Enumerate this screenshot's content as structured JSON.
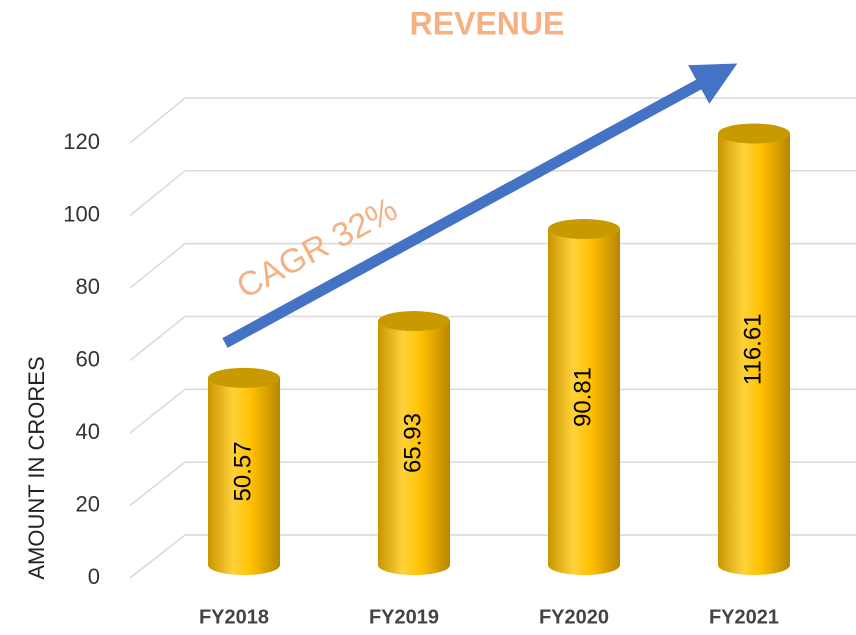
{
  "chart_data": {
    "type": "bar",
    "title": "REVENUE",
    "y_label": "AMOUNT IN CRORES",
    "annotation": "CAGR 32%",
    "categories": [
      "FY2018",
      "FY2019",
      "FY2020",
      "FY2021"
    ],
    "values": [
      50.57,
      65.93,
      90.81,
      116.61
    ],
    "color": "#ffc000",
    "ylim": [
      0,
      120
    ],
    "yticks": [
      0,
      20,
      40,
      60,
      80,
      100,
      120
    ],
    "grid": true
  }
}
